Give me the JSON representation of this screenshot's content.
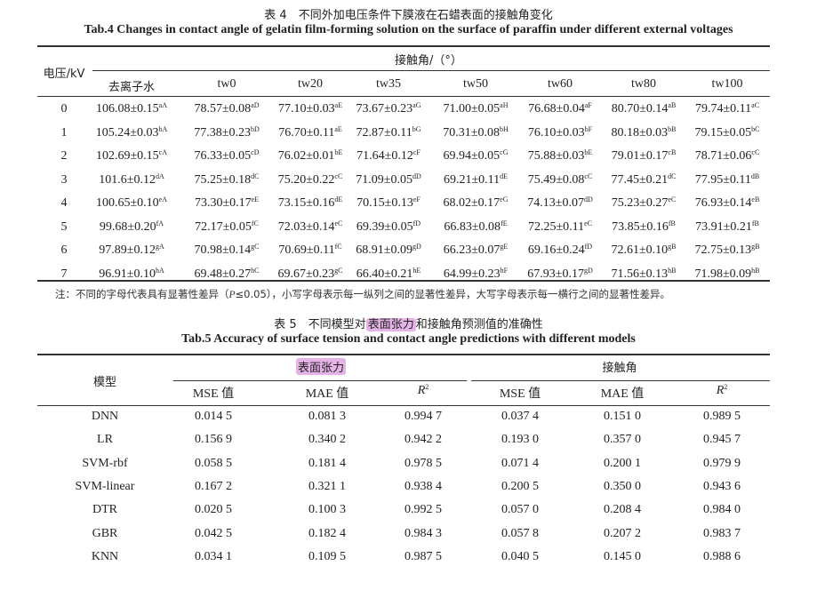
{
  "table4": {
    "title_cn": "表 4　不同外加电压条件下膜液在石蜡表面的接触角变化",
    "title_en": "Tab.4 Changes in contact angle of gelatin film-forming solution on the surface of paraffin under different external voltages",
    "row_header": "电压/kV",
    "group_header": "接触角/（°）",
    "columns": [
      "去离子水",
      "tw0",
      "tw20",
      "tw35",
      "tw50",
      "tw60",
      "tw80",
      "tw100"
    ],
    "rows": [
      {
        "voltage": "0",
        "cells": [
          {
            "v": "106.08±0.15",
            "sup": "aA"
          },
          {
            "v": "78.57±0.08",
            "sup": "aD"
          },
          {
            "v": "77.10±0.03",
            "sup": "aE"
          },
          {
            "v": "73.67±0.23",
            "sup": "aG"
          },
          {
            "v": "71.00±0.05",
            "sup": "aH"
          },
          {
            "v": "76.68±0.04",
            "sup": "aF"
          },
          {
            "v": "80.70±0.14",
            "sup": "aB"
          },
          {
            "v": "79.74±0.11",
            "sup": "aC"
          }
        ]
      },
      {
        "voltage": "1",
        "cells": [
          {
            "v": "105.24±0.03",
            "sup": "bA"
          },
          {
            "v": "77.38±0.23",
            "sup": "bD"
          },
          {
            "v": "76.70±0.11",
            "sup": "aE"
          },
          {
            "v": "72.87±0.11",
            "sup": "bG"
          },
          {
            "v": "70.31±0.08",
            "sup": "bH"
          },
          {
            "v": "76.10±0.03",
            "sup": "bF"
          },
          {
            "v": "80.18±0.03",
            "sup": "bB"
          },
          {
            "v": "79.15±0.05",
            "sup": "bC"
          }
        ]
      },
      {
        "voltage": "2",
        "cells": [
          {
            "v": "102.69±0.15",
            "sup": "cA"
          },
          {
            "v": "76.33±0.05",
            "sup": "cD"
          },
          {
            "v": "76.02±0.01",
            "sup": "bE"
          },
          {
            "v": "71.64±0.12",
            "sup": "cF"
          },
          {
            "v": "69.94±0.05",
            "sup": "cG"
          },
          {
            "v": "75.88±0.03",
            "sup": "bE"
          },
          {
            "v": "79.01±0.17",
            "sup": "cB"
          },
          {
            "v": "78.71±0.06",
            "sup": "cC"
          }
        ]
      },
      {
        "voltage": "3",
        "cells": [
          {
            "v": "101.6±0.12",
            "sup": "dA"
          },
          {
            "v": "75.25±0.18",
            "sup": "dC"
          },
          {
            "v": "75.20±0.22",
            "sup": "cC"
          },
          {
            "v": "71.09±0.05",
            "sup": "dD"
          },
          {
            "v": "69.21±0.11",
            "sup": "dE"
          },
          {
            "v": "75.49±0.08",
            "sup": "cC"
          },
          {
            "v": "77.45±0.21",
            "sup": "dC"
          },
          {
            "v": "77.95±0.11",
            "sup": "dB"
          }
        ]
      },
      {
        "voltage": "4",
        "cells": [
          {
            "v": "100.65±0.10",
            "sup": "eA"
          },
          {
            "v": "73.30±0.17",
            "sup": "eE"
          },
          {
            "v": "73.15±0.16",
            "sup": "dE"
          },
          {
            "v": "70.15±0.13",
            "sup": "eF"
          },
          {
            "v": "68.02±0.17",
            "sup": "eG"
          },
          {
            "v": "74.13±0.07",
            "sup": "dD"
          },
          {
            "v": "75.23±0.27",
            "sup": "eC"
          },
          {
            "v": "76.93±0.14",
            "sup": "eB"
          }
        ]
      },
      {
        "voltage": "5",
        "cells": [
          {
            "v": "99.68±0.20",
            "sup": "fA"
          },
          {
            "v": "72.17±0.05",
            "sup": "fC"
          },
          {
            "v": "72.03±0.14",
            "sup": "eC"
          },
          {
            "v": "69.39±0.05",
            "sup": "fD"
          },
          {
            "v": "66.83±0.08",
            "sup": "fE"
          },
          {
            "v": "72.25±0.11",
            "sup": "eC"
          },
          {
            "v": "73.85±0.16",
            "sup": "fB"
          },
          {
            "v": "73.91±0.21",
            "sup": "fB"
          }
        ]
      },
      {
        "voltage": "6",
        "cells": [
          {
            "v": "97.89±0.12",
            "sup": "gA"
          },
          {
            "v": "70.98±0.14",
            "sup": "gC"
          },
          {
            "v": "70.69±0.11",
            "sup": "fC"
          },
          {
            "v": "68.91±0.09",
            "sup": "gD"
          },
          {
            "v": "66.23±0.07",
            "sup": "gE"
          },
          {
            "v": "69.16±0.24",
            "sup": "fD"
          },
          {
            "v": "72.61±0.10",
            "sup": "gB"
          },
          {
            "v": "72.75±0.13",
            "sup": "gB"
          }
        ]
      },
      {
        "voltage": "7",
        "cells": [
          {
            "v": "96.91±0.10",
            "sup": "hA"
          },
          {
            "v": "69.48±0.27",
            "sup": "hC"
          },
          {
            "v": "69.67±0.23",
            "sup": "gC"
          },
          {
            "v": "66.40±0.21",
            "sup": "hE"
          },
          {
            "v": "64.99±0.23",
            "sup": "hF"
          },
          {
            "v": "67.93±0.17",
            "sup": "gD"
          },
          {
            "v": "71.56±0.13",
            "sup": "hB"
          },
          {
            "v": "71.98±0.09",
            "sup": "hB"
          }
        ]
      }
    ],
    "note_prefix": "注：不同的字母代表具有显著性差异（",
    "note_p": "P",
    "note_suffix": "≤0.05），小写字母表示每一纵列之间的显著性差异，大写字母表示每一横行之间的显著性差异。"
  },
  "table5": {
    "title_cn_a": "表 5　不同模型对",
    "title_cn_hl": "表面张力",
    "title_cn_b": "和接触角预测值的准确性",
    "title_en": "Tab.5 Accuracy of surface tension and contact angle predictions with different models",
    "row_header": "模型",
    "groups": [
      "表面张力",
      "接触角"
    ],
    "subcols": [
      "MSE 值",
      "MAE 值",
      "R",
      "MSE 值",
      "MAE 值",
      "R"
    ],
    "r_sup": "2",
    "rows": [
      {
        "model": "DNN",
        "values": [
          "0.014 5",
          "0.081 3",
          "0.994 7",
          "0.037 4",
          "0.151 0",
          "0.989 5"
        ]
      },
      {
        "model": "LR",
        "values": [
          "0.156 9",
          "0.340 2",
          "0.942 2",
          "0.193 0",
          "0.357 0",
          "0.945 7"
        ]
      },
      {
        "model": "SVM-rbf",
        "values": [
          "0.058 5",
          "0.181 4",
          "0.978 5",
          "0.071 4",
          "0.200 1",
          "0.979 9"
        ]
      },
      {
        "model": "SVM-linear",
        "values": [
          "0.167 2",
          "0.321 1",
          "0.938 4",
          "0.200 5",
          "0.350 0",
          "0.943 6"
        ]
      },
      {
        "model": "DTR",
        "values": [
          "0.020 5",
          "0.100 3",
          "0.992 5",
          "0.057 0",
          "0.208 4",
          "0.984 0"
        ]
      },
      {
        "model": "GBR",
        "values": [
          "0.042 5",
          "0.182 4",
          "0.984 3",
          "0.057 8",
          "0.207 2",
          "0.983 7"
        ]
      },
      {
        "model": "KNN",
        "values": [
          "0.034 1",
          "0.109 5",
          "0.987 5",
          "0.040 5",
          "0.145 0",
          "0.988 6"
        ]
      }
    ],
    "highlight_color": "#e6b3e6"
  }
}
